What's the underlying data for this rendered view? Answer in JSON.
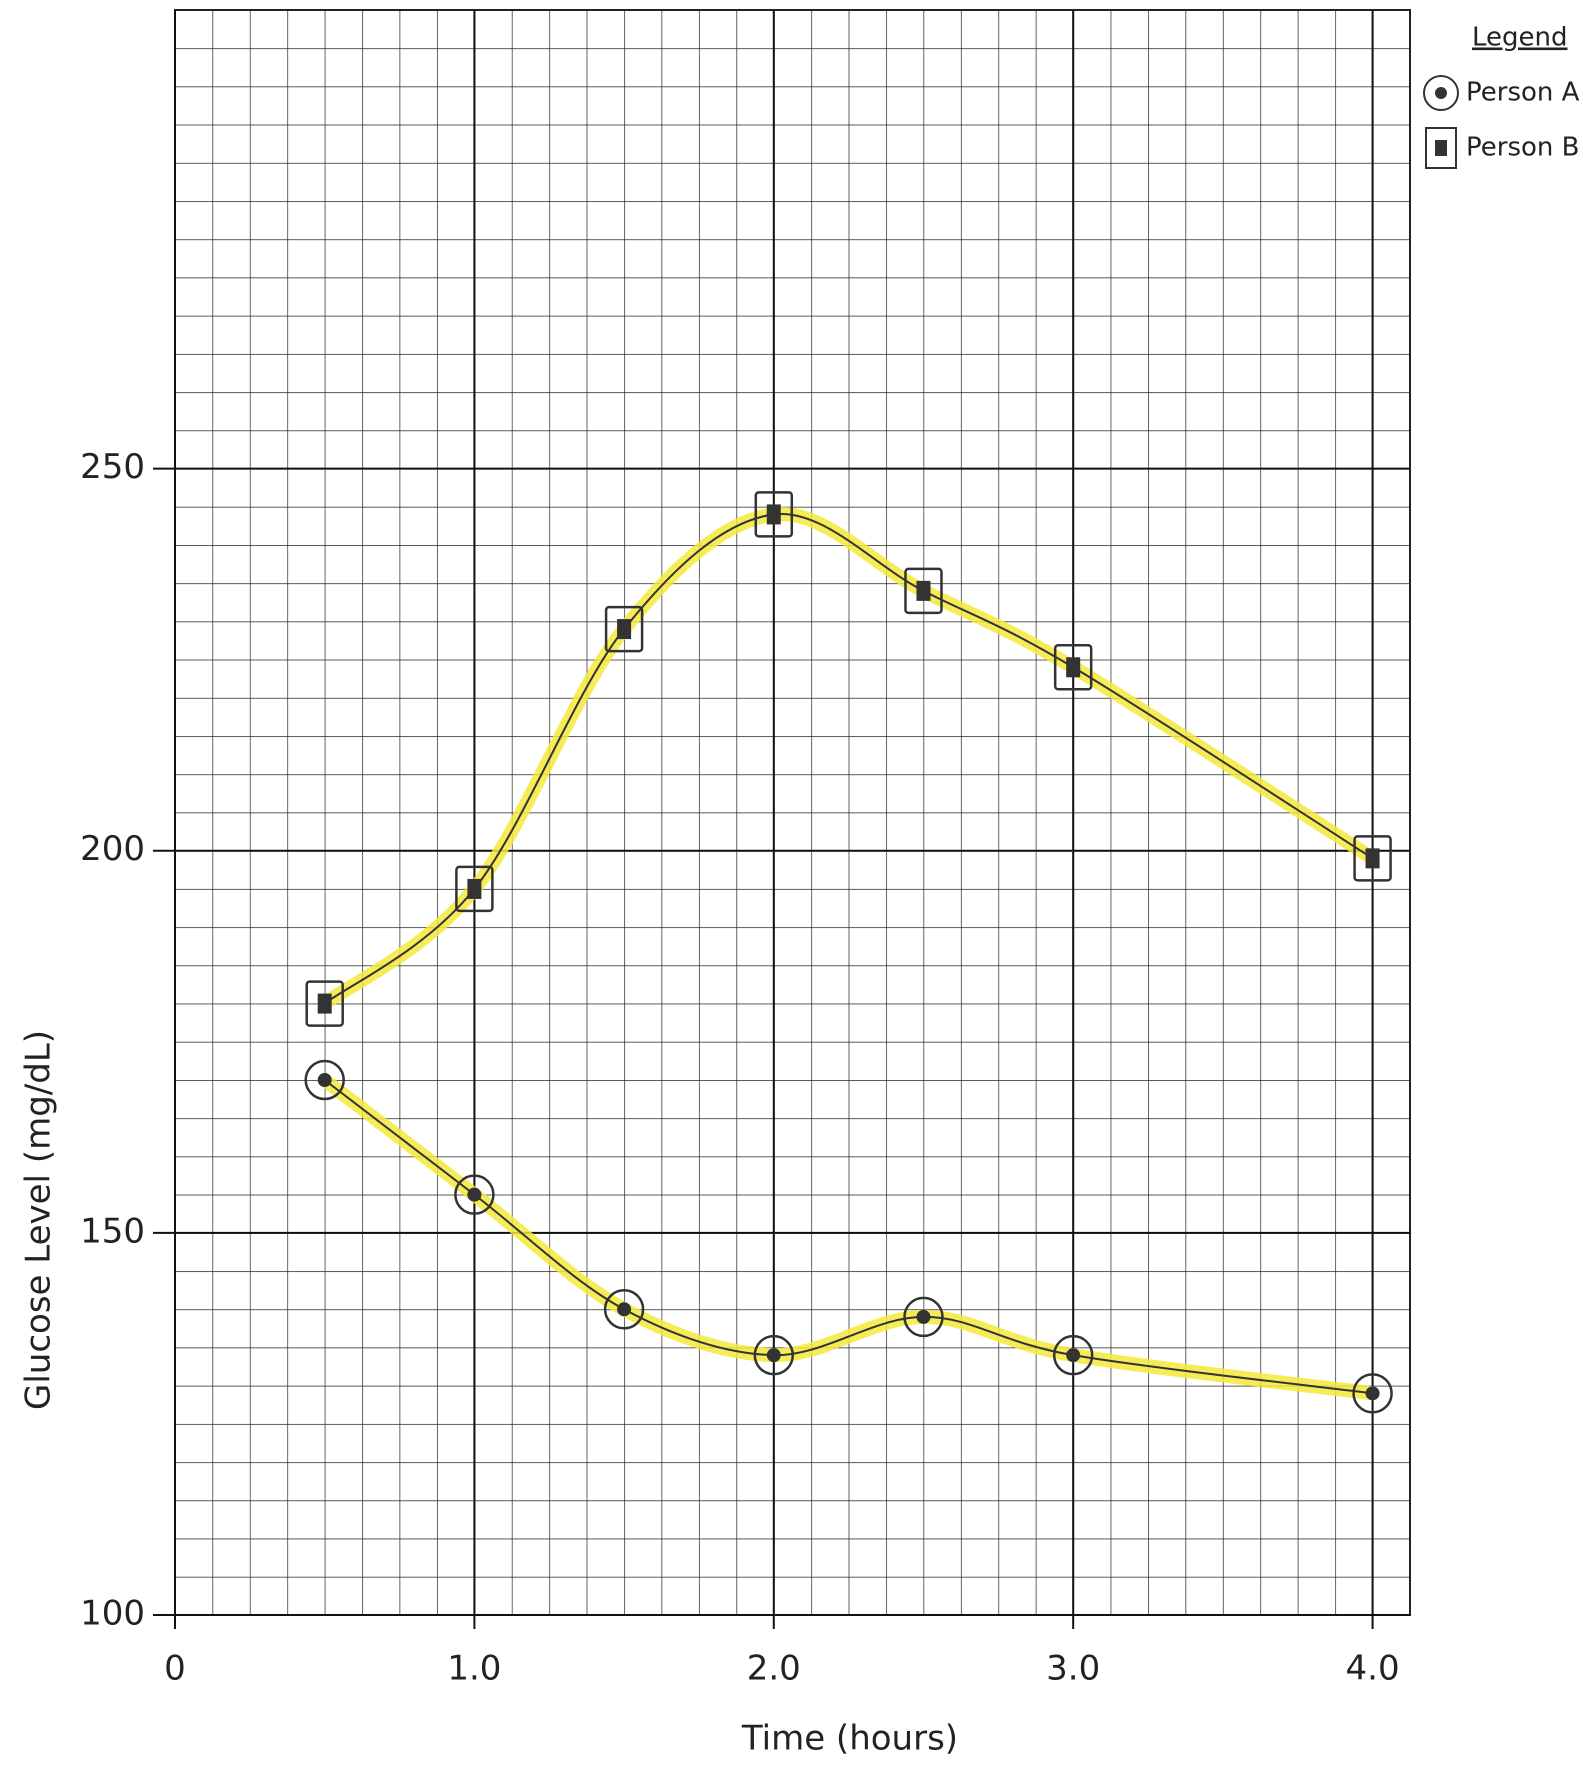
{
  "chart_data": {
    "type": "line",
    "x_label": "Time (hours)",
    "y_label": "Glucose Level (mg/dL)",
    "legend_title": "Legend",
    "x": [
      0.5,
      1.0,
      1.5,
      2.0,
      2.5,
      3.0,
      4.0
    ],
    "series": [
      {
        "name": "Person A",
        "marker": "circle",
        "color": "#333333",
        "values": [
          170,
          155,
          140,
          134,
          139,
          134,
          129
        ]
      },
      {
        "name": "Person B",
        "marker": "square",
        "color": "#333333",
        "values": [
          180,
          195,
          229,
          244,
          234,
          224,
          199
        ]
      }
    ],
    "trend_color": "#f3e93a",
    "xlim": [
      0,
      4.125
    ],
    "xticks": [
      0,
      {
        "value": 1,
        "label": "1.0"
      },
      {
        "value": 2,
        "label": "2.0"
      },
      {
        "value": 3,
        "label": "3.0"
      },
      {
        "value": 4,
        "label": "4.0"
      }
    ],
    "ylim": [
      100,
      310
    ],
    "yticks": [
      100,
      150,
      200,
      250
    ],
    "grid": true,
    "legend": "top-right"
  }
}
